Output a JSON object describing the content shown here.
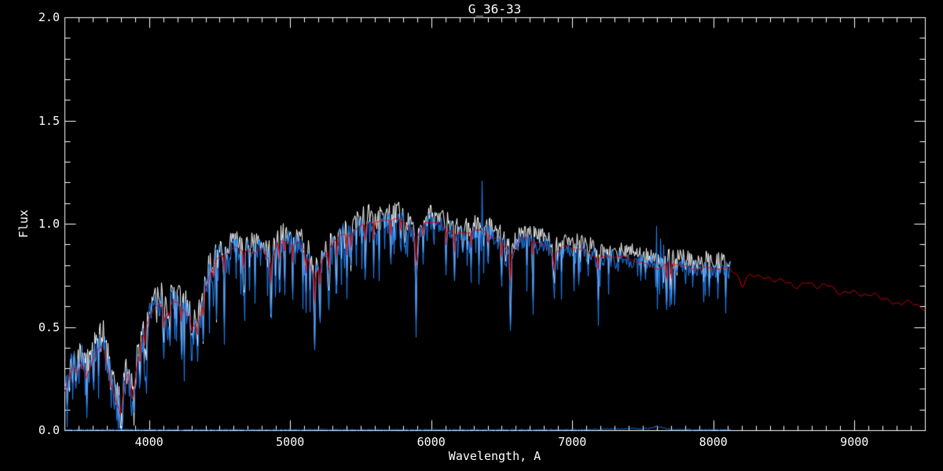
{
  "window": {
    "background_color": "#000000",
    "foreground_color": "#ffffff"
  },
  "chart_data": {
    "type": "line",
    "title": "G_36-33",
    "xlabel": "Wavelength, A",
    "ylabel": "Flux",
    "x_range": [
      3400,
      9500
    ],
    "y_range": [
      0.0,
      2.0
    ],
    "grid": false,
    "legend": "none",
    "x_major_tick_values": [
      4000,
      5000,
      6000,
      7000,
      8000,
      9000
    ],
    "x_tick_labels": [
      "4000",
      "5000",
      "6000",
      "7000",
      "8000",
      "9000"
    ],
    "x_minor_step": 100,
    "y_major_tick_values": [
      0.0,
      0.5,
      1.0,
      1.5,
      2.0
    ],
    "y_tick_labels": [
      "0.0",
      "0.5",
      "1.0",
      "1.5",
      "2.0"
    ],
    "y_minor_step": 0.1,
    "series": [
      {
        "name": "observed-spectrum-raw",
        "color": "#ffffff",
        "x_start": 3400,
        "x_end": 8120,
        "offset": 0.03,
        "noise_scale": 0.85
      },
      {
        "name": "observed-spectrum-smoothed",
        "color": "#1e86ff",
        "x_start": 3400,
        "x_end": 8120
      },
      {
        "name": "template-fit",
        "color": "#e60000",
        "x_start": 3400,
        "x_end": 9500
      },
      {
        "name": "noise-floor",
        "color": "#1e86ff",
        "x_start": 3400,
        "x_end": 8120,
        "level": 0.004
      }
    ],
    "continuum": {
      "wavelength": [
        3400,
        3430,
        3460,
        3490,
        3520,
        3550,
        3580,
        3610,
        3640,
        3670,
        3700,
        3730,
        3760,
        3790,
        3820,
        3850,
        3880,
        3910,
        3940,
        3970,
        4000,
        4040,
        4080,
        4120,
        4160,
        4200,
        4240,
        4280,
        4320,
        4360,
        4400,
        4440,
        4480,
        4520,
        4560,
        4600,
        4650,
        4700,
        4750,
        4800,
        4860,
        4910,
        4960,
        5010,
        5060,
        5110,
        5170,
        5220,
        5270,
        5320,
        5370,
        5420,
        5470,
        5520,
        5570,
        5620,
        5680,
        5740,
        5800,
        5860,
        5890,
        5950,
        6000,
        6060,
        6120,
        6180,
        6240,
        6300,
        6360,
        6420,
        6480,
        6560,
        6640,
        6720,
        6800,
        6870,
        6940,
        7000,
        7080,
        7160,
        7240,
        7320,
        7400,
        7480,
        7560,
        7620,
        7680,
        7760,
        7840,
        7920,
        8000,
        8080,
        8120,
        8160,
        8210,
        8260,
        8310,
        8360,
        8420,
        8480,
        8540,
        8600,
        8660,
        8720,
        8780,
        8840,
        8900,
        8960,
        9020,
        9080,
        9140,
        9200,
        9260,
        9320,
        9380,
        9440,
        9500
      ],
      "flux": [
        0.2,
        0.26,
        0.31,
        0.27,
        0.33,
        0.25,
        0.3,
        0.35,
        0.4,
        0.42,
        0.32,
        0.24,
        0.14,
        0.1,
        0.22,
        0.28,
        0.14,
        0.3,
        0.42,
        0.5,
        0.55,
        0.6,
        0.62,
        0.55,
        0.62,
        0.61,
        0.58,
        0.56,
        0.5,
        0.55,
        0.7,
        0.78,
        0.83,
        0.85,
        0.86,
        0.88,
        0.87,
        0.88,
        0.86,
        0.89,
        0.81,
        0.9,
        0.92,
        0.9,
        0.91,
        0.87,
        0.74,
        0.81,
        0.88,
        0.92,
        0.95,
        0.96,
        0.98,
        1.0,
        1.01,
        1.0,
        1.02,
        1.03,
        1.02,
        0.97,
        0.92,
        1.0,
        1.01,
        1.0,
        0.98,
        0.96,
        0.95,
        0.97,
        0.96,
        0.95,
        0.93,
        0.85,
        0.93,
        0.92,
        0.9,
        0.86,
        0.89,
        0.88,
        0.87,
        0.85,
        0.84,
        0.84,
        0.83,
        0.82,
        0.8,
        0.78,
        0.81,
        0.8,
        0.79,
        0.79,
        0.78,
        0.78,
        0.78,
        0.77,
        0.72,
        0.75,
        0.75,
        0.74,
        0.72,
        0.73,
        0.72,
        0.7,
        0.71,
        0.7,
        0.7,
        0.69,
        0.68,
        0.67,
        0.66,
        0.65,
        0.66,
        0.64,
        0.63,
        0.62,
        0.61,
        0.61,
        0.59
      ]
    },
    "absorption_lines": [
      [
        3727,
        0.1,
        8
      ],
      [
        3800,
        0.12,
        15
      ],
      [
        3933,
        0.22,
        7
      ],
      [
        3968,
        0.22,
        7
      ],
      [
        4101,
        0.22,
        8
      ],
      [
        4144,
        0.15,
        6
      ],
      [
        4226,
        0.22,
        6
      ],
      [
        4300,
        0.15,
        12
      ],
      [
        4340,
        0.2,
        7
      ],
      [
        4383,
        0.25,
        6
      ],
      [
        4455,
        0.2,
        6
      ],
      [
        4530,
        0.25,
        7
      ],
      [
        4668,
        0.28,
        7
      ],
      [
        4861,
        0.3,
        7
      ],
      [
        4920,
        0.25,
        6
      ],
      [
        4957,
        0.22,
        6
      ],
      [
        5015,
        0.25,
        6
      ],
      [
        5110,
        0.28,
        7
      ],
      [
        5170,
        0.4,
        7
      ],
      [
        5208,
        0.35,
        7
      ],
      [
        5270,
        0.3,
        7
      ],
      [
        5328,
        0.25,
        6
      ],
      [
        5400,
        0.28,
        6
      ],
      [
        5430,
        0.25,
        6
      ],
      [
        5530,
        0.28,
        6
      ],
      [
        5590,
        0.25,
        6
      ],
      [
        5710,
        0.26,
        6
      ],
      [
        5782,
        0.2,
        6
      ],
      [
        5890,
        0.45,
        8
      ],
      [
        5940,
        0.15,
        6
      ],
      [
        6103,
        0.25,
        6
      ],
      [
        6162,
        0.28,
        6
      ],
      [
        6280,
        0.22,
        6
      ],
      [
        6400,
        0.2,
        5
      ],
      [
        6495,
        0.28,
        6
      ],
      [
        6560,
        0.42,
        7
      ],
      [
        6717,
        0.25,
        6
      ],
      [
        6870,
        0.2,
        10
      ],
      [
        7180,
        0.2,
        8
      ],
      [
        7665,
        0.3,
        6
      ],
      [
        7699,
        0.25,
        6
      ],
      [
        8200,
        0.05,
        20
      ]
    ],
    "emission_spikes": [
      [
        6360,
        1.21
      ],
      [
        7595,
        0.99
      ],
      [
        7621,
        0.93
      ],
      [
        7643,
        0.9
      ]
    ],
    "noise": {
      "seed": 7,
      "amplitude_regions": [
        [
          3400,
          4000,
          0.095
        ],
        [
          4000,
          4500,
          0.075
        ],
        [
          4500,
          5000,
          0.06
        ],
        [
          5000,
          5600,
          0.055
        ],
        [
          5600,
          6500,
          0.045
        ],
        [
          6500,
          7200,
          0.04
        ],
        [
          7200,
          8121,
          0.045
        ]
      ],
      "dip_density": 0.3,
      "dip_regions": [
        [
          3400,
          4600,
          0.4
        ],
        [
          4600,
          5600,
          0.38
        ],
        [
          5600,
          6600,
          0.3
        ],
        [
          6600,
          8121,
          0.28
        ]
      ],
      "template_wiggle": 0.006,
      "template_wiggle_red_only": 0.013
    }
  }
}
